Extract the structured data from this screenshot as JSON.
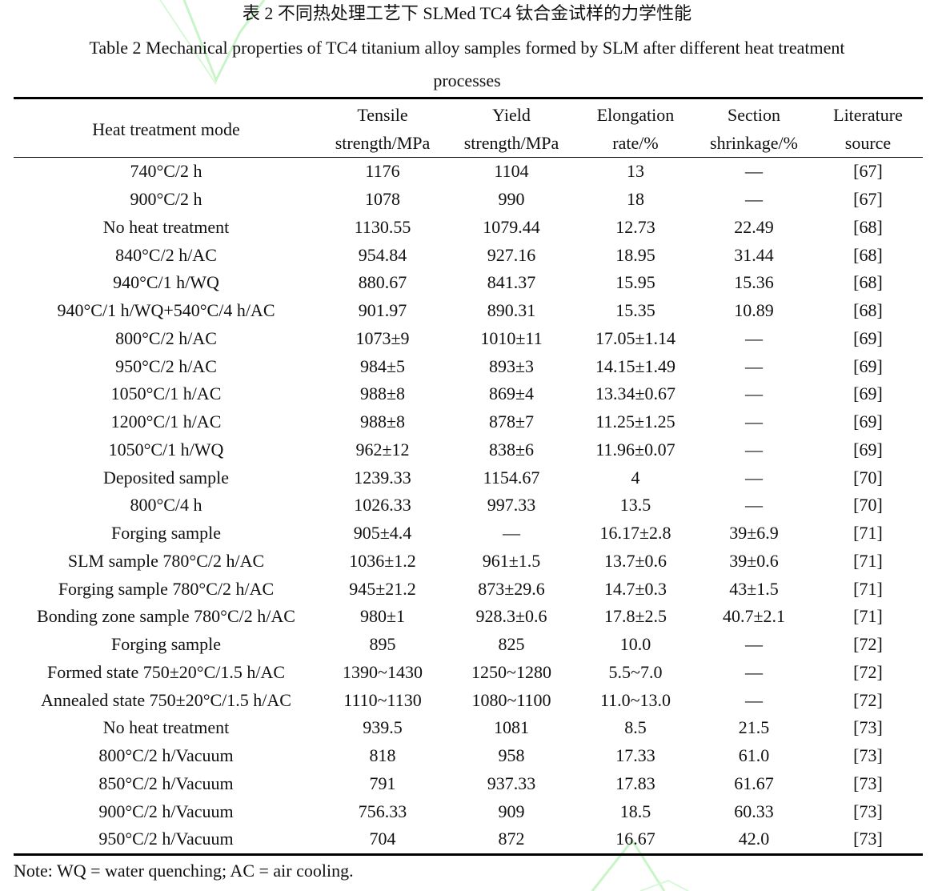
{
  "title_cn": "表 2  不同热处理工艺下 SLMed TC4 钛合金试样的力学性能",
  "title_en": "Table 2 Mechanical properties of TC4 titanium alloy samples formed by SLM after different heat treatment",
  "title_en_cont": "processes",
  "headers": [
    {
      "line1": "Heat treatment mode",
      "line2": ""
    },
    {
      "line1": "Tensile",
      "line2": "strength/MPa"
    },
    {
      "line1": "Yield",
      "line2": "strength/MPa"
    },
    {
      "line1": "Elongation",
      "line2": "rate/%"
    },
    {
      "line1": "Section",
      "line2": "shrinkage/%"
    },
    {
      "line1": "Literature",
      "line2": "source"
    }
  ],
  "rows": [
    [
      "740°C/2 h",
      "1176",
      "1104",
      "13",
      "—",
      "[67]"
    ],
    [
      "900°C/2 h",
      "1078",
      "990",
      "18",
      "—",
      "[67]"
    ],
    [
      "No heat treatment",
      "1130.55",
      "1079.44",
      "12.73",
      "22.49",
      "[68]"
    ],
    [
      "840°C/2 h/AC",
      "954.84",
      "927.16",
      "18.95",
      "31.44",
      "[68]"
    ],
    [
      "940°C/1 h/WQ",
      "880.67",
      "841.37",
      "15.95",
      "15.36",
      "[68]"
    ],
    [
      "940°C/1 h/WQ+540°C/4 h/AC",
      "901.97",
      "890.31",
      "15.35",
      "10.89",
      "[68]"
    ],
    [
      "800°C/2 h/AC",
      "1073±9",
      "1010±11",
      "17.05±1.14",
      "—",
      "[69]"
    ],
    [
      "950°C/2 h/AC",
      "984±5",
      "893±3",
      "14.15±1.49",
      "—",
      "[69]"
    ],
    [
      "1050°C/1 h/AC",
      "988±8",
      "869±4",
      "13.34±0.67",
      "—",
      "[69]"
    ],
    [
      "1200°C/1 h/AC",
      "988±8",
      "878±7",
      "11.25±1.25",
      "—",
      "[69]"
    ],
    [
      "1050°C/1 h/WQ",
      "962±12",
      "838±6",
      "11.96±0.07",
      "—",
      "[69]"
    ],
    [
      "Deposited sample",
      "1239.33",
      "1154.67",
      "4",
      "—",
      "[70]"
    ],
    [
      "800°C/4 h",
      "1026.33",
      "997.33",
      "13.5",
      "—",
      "[70]"
    ],
    [
      "Forging sample",
      "905±4.4",
      "—",
      "16.17±2.8",
      "39±6.9",
      "[71]"
    ],
    [
      "SLM sample 780°C/2 h/AC",
      "1036±1.2",
      "961±1.5",
      "13.7±0.6",
      "39±0.6",
      "[71]"
    ],
    [
      "Forging sample 780°C/2 h/AC",
      "945±21.2",
      "873±29.6",
      "14.7±0.3",
      "43±1.5",
      "[71]"
    ],
    [
      "Bonding zone sample 780°C/2 h/AC",
      "980±1",
      "928.3±0.6",
      "17.8±2.5",
      "40.7±2.1",
      "[71]"
    ],
    [
      "Forging sample",
      "895",
      "825",
      "10.0",
      "—",
      "[72]"
    ],
    [
      "Formed state 750±20°C/1.5 h/AC",
      "1390~1430",
      "1250~1280",
      "5.5~7.0",
      "—",
      "[72]"
    ],
    [
      "Annealed state 750±20°C/1.5 h/AC",
      "1110~1130",
      "1080~1100",
      "11.0~13.0",
      "—",
      "[72]"
    ],
    [
      "No heat treatment",
      "939.5",
      "1081",
      "8.5",
      "21.5",
      "[73]"
    ],
    [
      "800°C/2 h/Vacuum",
      "818",
      "958",
      "17.33",
      "61.0",
      "[73]"
    ],
    [
      "850°C/2 h/Vacuum",
      "791",
      "937.33",
      "17.83",
      "61.67",
      "[73]"
    ],
    [
      "900°C/2 h/Vacuum",
      "756.33",
      "909",
      "18.5",
      "60.33",
      "[73]"
    ],
    [
      "950°C/2 h/Vacuum",
      "704",
      "872",
      "16.67",
      "42.0",
      "[73]"
    ]
  ],
  "note": "Note: WQ = water quenching; AC = air cooling.",
  "watermark_color": "#c8f5c8"
}
